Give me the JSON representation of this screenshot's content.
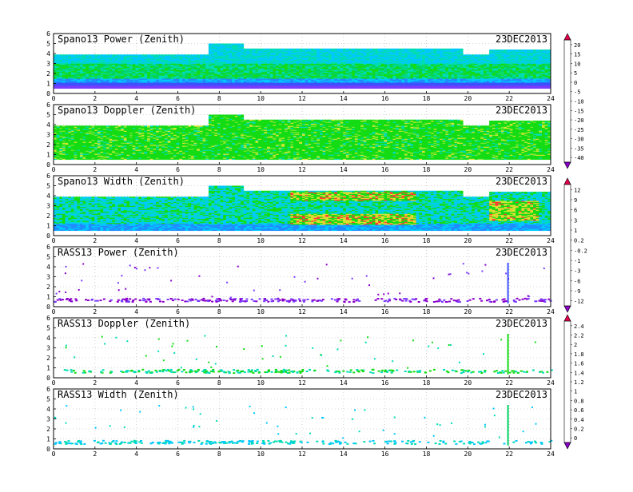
{
  "date": "23DEC2013",
  "colors": {
    "scale": [
      "#8a00c8",
      "#7a3cff",
      "#3c50ff",
      "#1e8cff",
      "#00c8ff",
      "#00dcb4",
      "#00d264",
      "#14dc14",
      "#78e632",
      "#d2e632",
      "#f0c832",
      "#ff9632",
      "#ff3c32",
      "#e60050"
    ],
    "grid": "#b0b0b0"
  },
  "x_ticks": [
    "0",
    "2",
    "4",
    "6",
    "8",
    "10",
    "12",
    "14",
    "16",
    "18",
    "20",
    "22",
    "24"
  ],
  "y_ticks": [
    "0",
    "1",
    "2",
    "3",
    "4",
    "5",
    "6"
  ],
  "panels": [
    {
      "title": "Spano13 Power (Zenith)"
    },
    {
      "title": "Spano13 Doppler (Zenith)"
    },
    {
      "title": "Spano13 Width (Zenith)"
    },
    {
      "title": "RASS13 Power (Zenith)"
    },
    {
      "title": "RASS13 Doppler (Zenith)"
    },
    {
      "title": "RASS13 Width (Zenith)"
    }
  ],
  "colorbars": [
    {
      "labels": [
        "20",
        "15",
        "10",
        "5",
        "0",
        "-5",
        "-10",
        "-15",
        "-20",
        "-25",
        "-30",
        "-35",
        "-40"
      ]
    },
    {
      "labels": [
        "12",
        "9",
        "6",
        "3",
        "1",
        "0.2",
        "-0.2",
        "-1",
        "-3",
        "-6",
        "-9",
        "-12"
      ]
    },
    {
      "labels": [
        "2.4",
        "2.2",
        "2",
        "1.8",
        "1.6",
        "1.4",
        "1.2",
        "1",
        "0.8",
        "0.6",
        "0.4",
        "0.2",
        "0"
      ]
    }
  ],
  "chart_data": [
    {
      "type": "heatmap",
      "title": "Spano13 Power (Zenith)",
      "x_range": [
        0,
        24
      ],
      "y_range": [
        0,
        6
      ],
      "xticks": [
        0,
        2,
        4,
        6,
        8,
        10,
        12,
        14,
        16,
        18,
        20,
        22,
        24
      ],
      "yticks": [
        0,
        1,
        2,
        3,
        4,
        5,
        6
      ],
      "grid": true,
      "annotation": "23DEC2013",
      "dominant_range": [
        -40,
        20
      ]
    },
    {
      "type": "heatmap",
      "title": "Spano13 Doppler (Zenith)",
      "x_range": [
        0,
        24
      ],
      "y_range": [
        0,
        6
      ],
      "xticks": [
        0,
        2,
        4,
        6,
        8,
        10,
        12,
        14,
        16,
        18,
        20,
        22,
        24
      ],
      "yticks": [
        0,
        1,
        2,
        3,
        4,
        5,
        6
      ],
      "grid": true,
      "annotation": "23DEC2013"
    },
    {
      "type": "heatmap",
      "title": "Spano13 Width (Zenith)",
      "x_range": [
        0,
        24
      ],
      "y_range": [
        0,
        6
      ],
      "xticks": [
        0,
        2,
        4,
        6,
        8,
        10,
        12,
        14,
        16,
        18,
        20,
        22,
        24
      ],
      "yticks": [
        0,
        1,
        2,
        3,
        4,
        5,
        6
      ],
      "grid": true,
      "annotation": "23DEC2013"
    },
    {
      "type": "scatter",
      "title": "RASS13 Power (Zenith)",
      "x_range": [
        0,
        24
      ],
      "y_range": [
        0,
        6
      ],
      "xticks": [
        0,
        2,
        4,
        6,
        8,
        10,
        12,
        14,
        16,
        18,
        20,
        22,
        24
      ],
      "yticks": [
        0,
        1,
        2,
        3,
        4,
        5,
        6
      ],
      "grid": true,
      "annotation": "23DEC2013"
    },
    {
      "type": "scatter",
      "title": "RASS13 Doppler (Zenith)",
      "x_range": [
        0,
        24
      ],
      "y_range": [
        0,
        6
      ],
      "xticks": [
        0,
        2,
        4,
        6,
        8,
        10,
        12,
        14,
        16,
        18,
        20,
        22,
        24
      ],
      "yticks": [
        0,
        1,
        2,
        3,
        4,
        5,
        6
      ],
      "grid": true,
      "annotation": "23DEC2013"
    },
    {
      "type": "scatter",
      "title": "RASS13 Width (Zenith)",
      "x_range": [
        0,
        24
      ],
      "y_range": [
        0,
        6
      ],
      "xticks": [
        0,
        2,
        4,
        6,
        8,
        10,
        12,
        14,
        16,
        18,
        20,
        22,
        24
      ],
      "yticks": [
        0,
        1,
        2,
        3,
        4,
        5,
        6
      ],
      "grid": true,
      "annotation": "23DEC2013"
    }
  ]
}
